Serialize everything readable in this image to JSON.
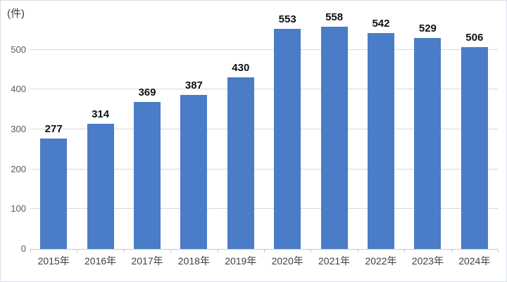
{
  "chart_data": {
    "type": "bar",
    "title": "",
    "unit_label": "(件)",
    "categories": [
      "2015年",
      "2016年",
      "2017年",
      "2018年",
      "2019年",
      "2020年",
      "2021年",
      "2022年",
      "2023年",
      "2024年"
    ],
    "values": [
      277,
      314,
      369,
      387,
      430,
      553,
      558,
      542,
      529,
      506
    ],
    "xlabel": "",
    "ylabel": "(件)",
    "ylim": [
      0,
      570
    ],
    "yticks": [
      0,
      100,
      200,
      300,
      400,
      500
    ],
    "grid": "horizontal",
    "legend": "none",
    "bar_color": "#4b7cc8",
    "gridline_color": "#d9d9d9",
    "axis_tick_label_color": "#595959"
  }
}
